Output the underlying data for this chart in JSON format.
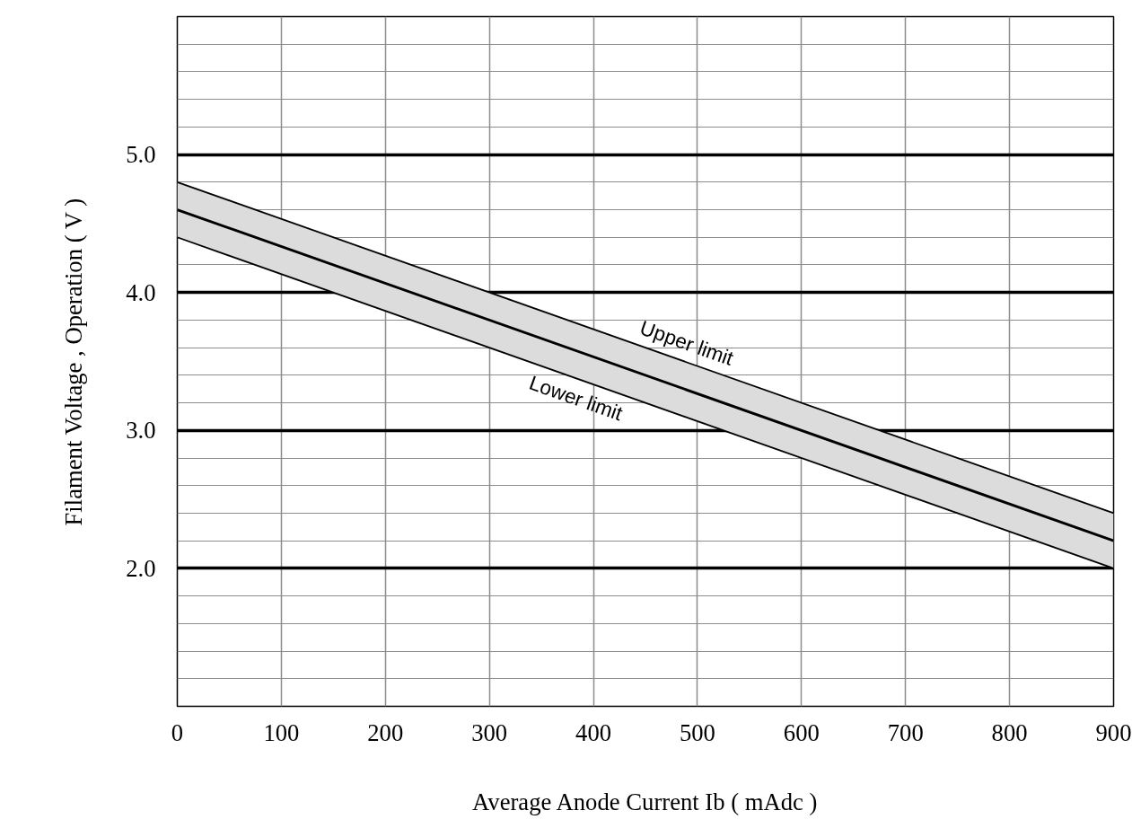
{
  "chart_data": {
    "type": "line",
    "xlabel": "Average Anode Current Ib ( mAdc )",
    "ylabel": "Filament Voltage , Operation ( V )",
    "x": [
      0,
      900
    ],
    "series": [
      {
        "color": "#000000",
        "values": [
          4.6,
          2.2
        ],
        "lower": [
          4.4,
          2.0
        ],
        "upper": [
          4.8,
          2.4
        ]
      },
      {
        "name": "Upper limit",
        "color": "#000000",
        "values": [
          4.8,
          2.4
        ]
      },
      {
        "name": "Lower limit",
        "color": "#000000",
        "values": [
          4.4,
          2.0
        ]
      }
    ],
    "xlim": [
      0,
      900
    ],
    "ylim": [
      1.0,
      6.0
    ],
    "xticks": [
      0,
      100,
      200,
      300,
      400,
      500,
      600,
      700,
      800,
      900
    ],
    "yticks": [
      {
        "value": 1.2,
        "label": null
      },
      {
        "value": 1.4,
        "label": null
      },
      {
        "value": 1.6,
        "label": null
      },
      {
        "value": 1.8,
        "label": null
      },
      {
        "value": 2.0,
        "label": "2.0"
      },
      {
        "value": 2.2,
        "label": null
      },
      {
        "value": 2.4,
        "label": null
      },
      {
        "value": 2.6,
        "label": null
      },
      {
        "value": 2.8,
        "label": null
      },
      {
        "value": 3.0,
        "label": "3.0"
      },
      {
        "value": 3.2,
        "label": null
      },
      {
        "value": 3.4,
        "label": null
      },
      {
        "value": 3.6,
        "label": null
      },
      {
        "value": 3.8,
        "label": null
      },
      {
        "value": 4.0,
        "label": "4.0"
      },
      {
        "value": 4.2,
        "label": null
      },
      {
        "value": 4.4,
        "label": null
      },
      {
        "value": 4.6,
        "label": null
      },
      {
        "value": 4.8,
        "label": null
      },
      {
        "value": 5.0,
        "label": "5.0"
      },
      {
        "value": 5.2,
        "label": null
      },
      {
        "value": 5.4,
        "label": null
      },
      {
        "value": 5.6,
        "label": null
      },
      {
        "value": 5.8,
        "label": null
      }
    ],
    "grid": true,
    "marker": "none",
    "line_style": "solid"
  }
}
